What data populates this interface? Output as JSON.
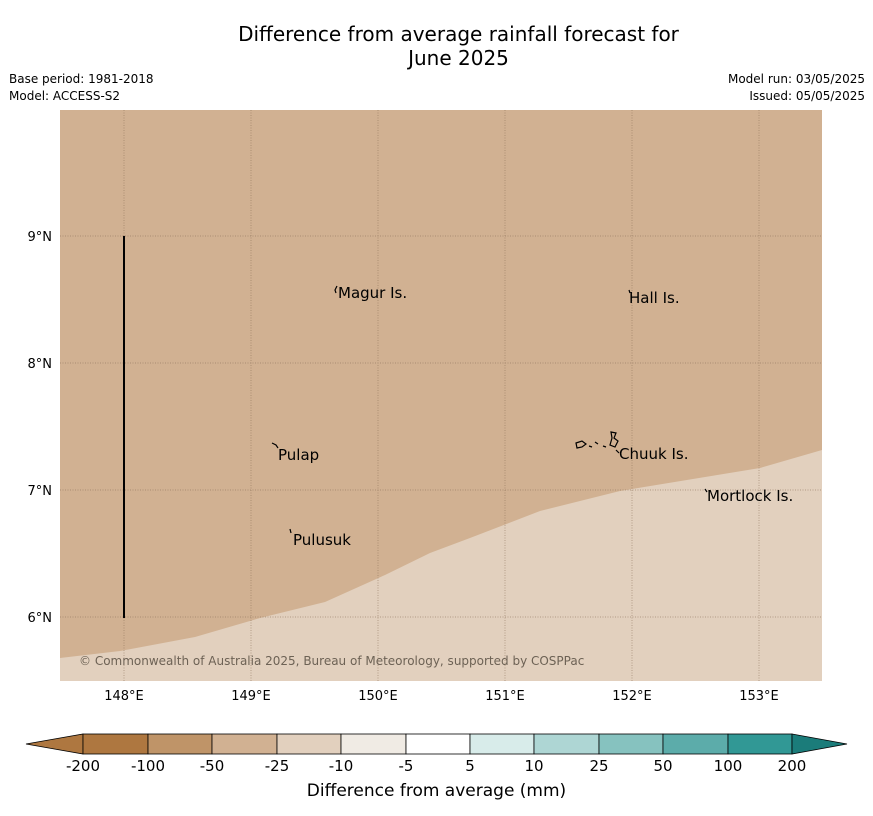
{
  "title_line1": "Difference from average rainfall forecast for",
  "title_line2": "June 2025",
  "base_period": "Base period: 1981-2018",
  "model": "Model: ACCESS-S2",
  "model_run": "Model run: 03/05/2025",
  "issued": "Issued: 05/05/2025",
  "copyright": "© Commonwealth of Australia 2025, Bureau of Meteorology, supported by COSPPac",
  "map": {
    "lon_ticks": [
      "148°E",
      "149°E",
      "150°E",
      "151°E",
      "152°E",
      "153°E"
    ],
    "lat_ticks": [
      "6°N",
      "7°N",
      "8°N",
      "9°N"
    ],
    "places": [
      "Magur Is.",
      "Hall Is.",
      "Pulap",
      "Chuuk Is.",
      "Mortlock Is.",
      "Pulusuk"
    ]
  },
  "legend": {
    "xlabel": "Difference from average (mm)",
    "ticks": [
      "-200",
      "-100",
      "-50",
      "-25",
      "-10",
      "-5",
      "5",
      "10",
      "25",
      "50",
      "100",
      "200"
    ],
    "colors": [
      "#ae7740",
      "#bf9468",
      "#d1b192",
      "#e2d0be",
      "#f0ebe4",
      "#ffffff",
      "#d8ecea",
      "#aed6d4",
      "#86c2bf",
      "#5cacaa",
      "#319895",
      "#1b7c7a"
    ]
  },
  "colors": {
    "dry_region": "#d1b192",
    "near_average_region": "#e2d0be"
  }
}
